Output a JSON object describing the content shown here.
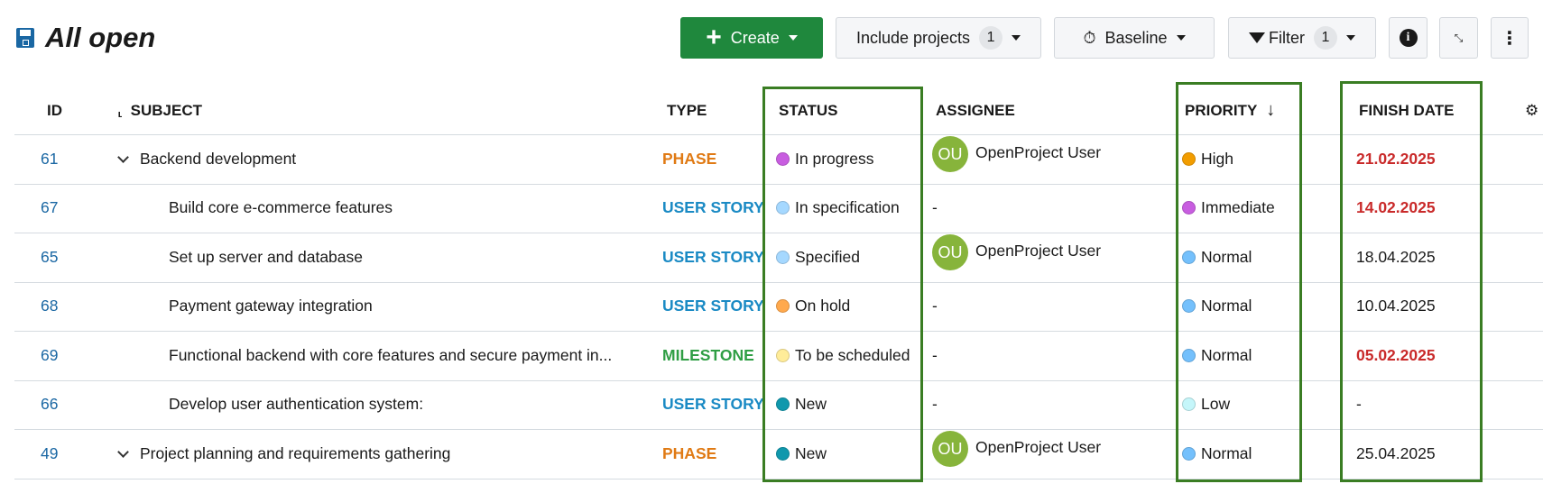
{
  "header": {
    "title": "All open"
  },
  "toolbar": {
    "create": "Create",
    "include_projects": "Include projects",
    "include_count": "1",
    "baseline": "Baseline",
    "filter": "Filter",
    "filter_count": "1"
  },
  "columns": {
    "id": "ID",
    "subject": "SUBJECT",
    "type": "TYPE",
    "status": "STATUS",
    "assignee": "ASSIGNEE",
    "priority": "PRIORITY",
    "finish": "FINISH DATE"
  },
  "colors": {
    "accent": "#1f883d",
    "highlight_box": "#3a7d23",
    "link": "#1a67a3",
    "overdue": "#c92a2a"
  },
  "rows": [
    {
      "id": "61",
      "subject": "Backend development",
      "expandable": true,
      "type": "PHASE",
      "type_color": "#e07a14",
      "status": "In progress",
      "status_color": "#c85de0",
      "assignee": "OpenProject User",
      "initials": "OU",
      "priority": "High",
      "priority_color": "#f29d00",
      "finish": "21.02.2025",
      "overdue": true
    },
    {
      "id": "67",
      "subject": "Build core e-commerce features",
      "type": "USER STORY",
      "type_color": "#1a8ac4",
      "status": "In specification",
      "status_color": "#a5d8ff",
      "assignee": "-",
      "priority": "Immediate",
      "priority_color": "#c85de0",
      "finish": "14.02.2025",
      "overdue": true
    },
    {
      "id": "65",
      "subject": "Set up server and database",
      "type": "USER STORY",
      "type_color": "#1a8ac4",
      "status": "Specified",
      "status_color": "#a5d8ff",
      "assignee": "OpenProject User",
      "initials": "OU",
      "priority": "Normal",
      "priority_color": "#74c0fc",
      "finish": "18.04.2025"
    },
    {
      "id": "68",
      "subject": "Payment gateway integration",
      "type": "USER STORY",
      "type_color": "#1a8ac4",
      "status": "On hold",
      "status_color": "#ffa94d",
      "assignee": "-",
      "priority": "Normal",
      "priority_color": "#74c0fc",
      "finish": "10.04.2025"
    },
    {
      "id": "69",
      "subject": "Functional backend with core features and secure payment in...",
      "type": "MILESTONE",
      "type_color": "#2f9e44",
      "status": "To be scheduled",
      "status_color": "#ffec99",
      "assignee": "-",
      "priority": "Normal",
      "priority_color": "#74c0fc",
      "finish": "05.02.2025",
      "overdue": true
    },
    {
      "id": "66",
      "subject": "Develop user authentication system:",
      "type": "USER STORY",
      "type_color": "#1a8ac4",
      "status": "New",
      "status_color": "#1098ad",
      "assignee": "-",
      "priority": "Low",
      "priority_color": "#c5f6fa",
      "finish": "-"
    },
    {
      "id": "49",
      "subject": "Project planning and requirements gathering",
      "expandable": true,
      "type": "PHASE",
      "type_color": "#e07a14",
      "status": "New",
      "status_color": "#1098ad",
      "assignee": "OpenProject User",
      "initials": "OU",
      "priority": "Normal",
      "priority_color": "#74c0fc",
      "finish": "25.04.2025"
    }
  ]
}
